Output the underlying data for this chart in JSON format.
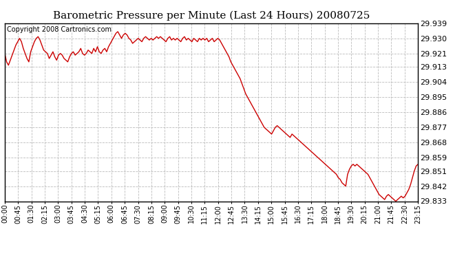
{
  "title": "Barometric Pressure per Minute (Last 24 Hours) 20080725",
  "copyright": "Copyright 2008 Cartronics.com",
  "line_color": "#cc0000",
  "bg_color": "#ffffff",
  "plot_bg_color": "#ffffff",
  "grid_color": "#bbbbbb",
  "yticks": [
    29.833,
    29.842,
    29.851,
    29.859,
    29.868,
    29.877,
    29.886,
    29.895,
    29.904,
    29.913,
    29.921,
    29.93,
    29.939
  ],
  "ylim": [
    29.833,
    29.939
  ],
  "xtick_labels": [
    "00:00",
    "00:45",
    "01:30",
    "02:15",
    "03:00",
    "03:45",
    "04:30",
    "05:15",
    "06:00",
    "06:45",
    "07:30",
    "08:15",
    "09:00",
    "09:45",
    "10:30",
    "11:15",
    "12:00",
    "12:45",
    "13:30",
    "14:15",
    "15:00",
    "15:45",
    "16:30",
    "17:15",
    "18:00",
    "18:45",
    "19:30",
    "20:15",
    "21:00",
    "21:45",
    "22:30",
    "23:15"
  ],
  "pressure_data": [
    29.921,
    29.916,
    29.914,
    29.917,
    29.92,
    29.923,
    29.926,
    29.928,
    29.93,
    29.928,
    29.924,
    29.921,
    29.918,
    29.916,
    29.922,
    29.925,
    29.928,
    29.93,
    29.931,
    29.929,
    29.926,
    29.923,
    29.922,
    29.921,
    29.918,
    29.92,
    29.922,
    29.919,
    29.917,
    29.92,
    29.921,
    29.92,
    29.918,
    29.917,
    29.916,
    29.919,
    29.921,
    29.922,
    29.92,
    29.921,
    29.922,
    29.924,
    29.921,
    29.92,
    29.921,
    29.923,
    29.922,
    29.921,
    29.924,
    29.922,
    29.925,
    29.922,
    29.921,
    29.923,
    29.924,
    29.922,
    29.925,
    29.927,
    29.929,
    29.931,
    29.933,
    29.934,
    29.932,
    29.93,
    29.932,
    29.933,
    29.932,
    29.93,
    29.929,
    29.927,
    29.928,
    29.929,
    29.93,
    29.929,
    29.928,
    29.93,
    29.931,
    29.93,
    29.929,
    29.93,
    29.929,
    29.93,
    29.931,
    29.93,
    29.931,
    29.93,
    29.929,
    29.928,
    29.93,
    29.931,
    29.929,
    29.93,
    29.929,
    29.93,
    29.929,
    29.928,
    29.93,
    29.931,
    29.929,
    29.93,
    29.929,
    29.928,
    29.93,
    29.929,
    29.928,
    29.93,
    29.929,
    29.93,
    29.929,
    29.93,
    29.928,
    29.929,
    29.93,
    29.928,
    29.929,
    29.93,
    29.929,
    29.927,
    29.925,
    29.923,
    29.921,
    29.919,
    29.916,
    29.914,
    29.912,
    29.91,
    29.908,
    29.906,
    29.903,
    29.9,
    29.897,
    29.895,
    29.893,
    29.891,
    29.889,
    29.887,
    29.885,
    29.883,
    29.881,
    29.879,
    29.877,
    29.876,
    29.875,
    29.874,
    29.873,
    29.875,
    29.877,
    29.878,
    29.877,
    29.876,
    29.875,
    29.874,
    29.873,
    29.872,
    29.871,
    29.873,
    29.872,
    29.871,
    29.87,
    29.869,
    29.868,
    29.867,
    29.866,
    29.865,
    29.864,
    29.863,
    29.862,
    29.861,
    29.86,
    29.859,
    29.858,
    29.857,
    29.856,
    29.855,
    29.854,
    29.853,
    29.852,
    29.851,
    29.85,
    29.849,
    29.847,
    29.846,
    29.844,
    29.843,
    29.842,
    29.849,
    29.852,
    29.854,
    29.855,
    29.854,
    29.855,
    29.854,
    29.853,
    29.852,
    29.851,
    29.85,
    29.849,
    29.847,
    29.845,
    29.843,
    29.841,
    29.839,
    29.837,
    29.836,
    29.835,
    29.834,
    29.836,
    29.837,
    29.836,
    29.835,
    29.834,
    29.833,
    29.834,
    29.835,
    29.836,
    29.835,
    29.836,
    29.838,
    29.84,
    29.843,
    29.847,
    29.851,
    29.854,
    29.855
  ]
}
